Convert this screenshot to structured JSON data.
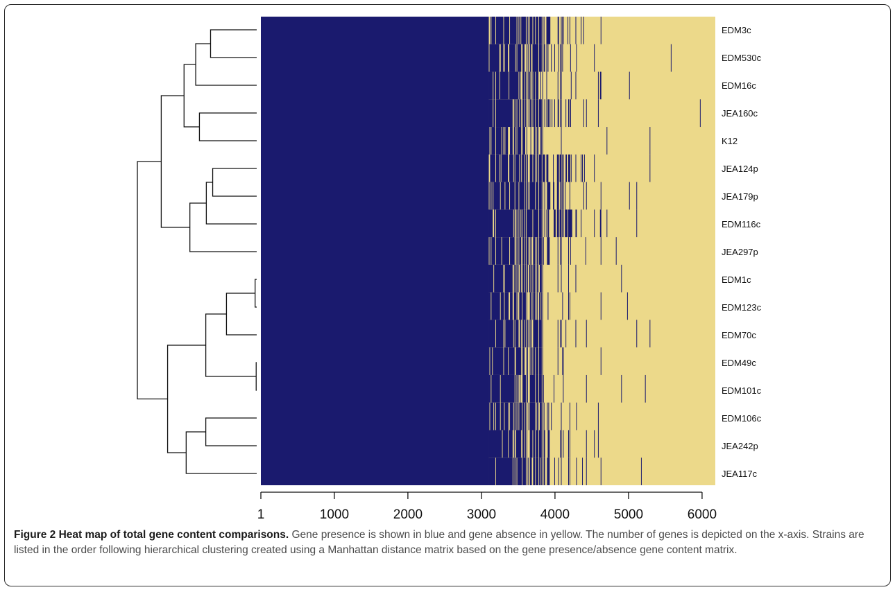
{
  "figure": {
    "caption_title": "Figure 2 Heat map of total gene content comparisons.",
    "caption_text": " Gene presence is shown in blue and gene absence in yellow. The number of genes is depicted on the x-axis. Strains are listed in the order following hierarchical clustering created using a Manhattan distance matrix based on the gene presence/absence gene content matrix."
  },
  "chart_data": {
    "type": "heatmap",
    "title": "",
    "xlabel": "",
    "ylabel": "",
    "xlim": [
      1,
      6180
    ],
    "x_ticks": [
      1,
      1000,
      2000,
      3000,
      4000,
      5000,
      6000
    ],
    "rows": [
      "EDM3c",
      "EDM530c",
      "EDM16c",
      "JEA160c",
      "K12",
      "JEA124p",
      "JEA179p",
      "EDM116c",
      "JEA297p",
      "EDM1c",
      "EDM123c",
      "EDM70c",
      "EDM49c",
      "EDM101c",
      "EDM106c",
      "JEA242p",
      "JEA117c"
    ],
    "colors": {
      "presence": "#1a1a6e",
      "absence": "#ecd98a"
    },
    "legend": {
      "presence": "Gene presence",
      "absence": "Gene absence"
    },
    "core_genes_all_present_through": 3100,
    "variable_region": [
      3100,
      6180
    ],
    "row_absence_start": [
      4100,
      4000,
      3900,
      4050,
      3700,
      4200,
      4100,
      4250,
      3950,
      3820,
      3820,
      3900,
      3850,
      3850,
      3950,
      3950,
      3950
    ],
    "dendrogram": {
      "type": "hierarchical",
      "distance": "Manhattan",
      "leaf_order": [
        "EDM3c",
        "EDM530c",
        "EDM16c",
        "JEA160c",
        "K12",
        "JEA124p",
        "JEA179p",
        "EDM116c",
        "JEA297p",
        "EDM1c",
        "EDM123c",
        "EDM70c",
        "EDM49c",
        "EDM101c",
        "EDM106c",
        "JEA242p",
        "JEA117c"
      ],
      "merges": [
        {
          "a": "EDM3c",
          "b": "EDM530c",
          "height": 0.87
        },
        {
          "a": "EDM3c+EDM530c",
          "b": "EDM16c",
          "height": 1.15
        },
        {
          "a": "JEA160c",
          "b": "K12",
          "height": 1.08
        },
        {
          "a": "EDM3c+EDM530c+EDM16c",
          "b": "JEA160c+K12",
          "height": 1.37
        },
        {
          "a": "JEA124p",
          "b": "JEA179p",
          "height": 0.83
        },
        {
          "a": "JEA124p+JEA179p",
          "b": "EDM116c",
          "height": 0.95
        },
        {
          "a": "JEA124p+JEA179p+EDM116c",
          "b": "JEA297p",
          "height": 1.26
        },
        {
          "a": "EDM3c+EDM530c+EDM16c+JEA160c+K12",
          "b": "JEA124p+JEA179p+EDM116c+JEA297p",
          "height": 1.8
        },
        {
          "a": "EDM1c",
          "b": "EDM123c",
          "height": 0.03
        },
        {
          "a": "EDM1c+EDM123c",
          "b": "EDM70c",
          "height": 0.57
        },
        {
          "a": "EDM49c",
          "b": "EDM101c",
          "height": 0.01
        },
        {
          "a": "EDM1c+EDM123c+EDM70c",
          "b": "EDM49c+EDM101c",
          "height": 0.96
        },
        {
          "a": "EDM106c",
          "b": "JEA242p",
          "height": 0.96
        },
        {
          "a": "EDM106c+JEA242p",
          "b": "JEA117c",
          "height": 1.33
        },
        {
          "a": "EDM1c+EDM123c+EDM70c+EDM49c+EDM101c",
          "b": "EDM106c+JEA242p+JEA117c",
          "height": 1.68
        },
        {
          "a": "top-cluster",
          "b": "bottom-cluster",
          "height": 2.25
        }
      ]
    }
  }
}
